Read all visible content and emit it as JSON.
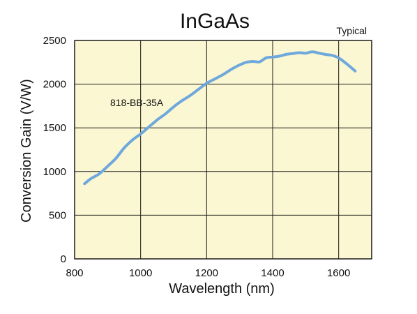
{
  "chart_data": {
    "type": "line",
    "title": "InGaAs",
    "subtitle": "Typical",
    "xlabel": "Wavelength (nm)",
    "ylabel": "Conversion Gain (V/W)",
    "xlim": [
      800,
      1700
    ],
    "ylim": [
      0,
      2500
    ],
    "xticks": [
      800,
      1000,
      1200,
      1400,
      1600
    ],
    "yticks": [
      0,
      500,
      1000,
      1500,
      2000,
      2500
    ],
    "grid": true,
    "colors": {
      "background": "#fbf7d2",
      "line": "#6fa8dc",
      "grid": "#1a1a1a"
    },
    "annotation": "818-BB-35A",
    "series": [
      {
        "name": "818-BB-35A",
        "x": [
          830,
          850,
          875,
          900,
          925,
          950,
          975,
          1000,
          1025,
          1050,
          1075,
          1100,
          1125,
          1150,
          1175,
          1200,
          1225,
          1250,
          1275,
          1300,
          1320,
          1340,
          1360,
          1380,
          1400,
          1420,
          1440,
          1460,
          1480,
          1500,
          1520,
          1540,
          1560,
          1580,
          1600,
          1625,
          1650
        ],
        "y": [
          860,
          920,
          975,
          1060,
          1150,
          1270,
          1360,
          1430,
          1510,
          1590,
          1660,
          1740,
          1810,
          1870,
          1940,
          2010,
          2060,
          2110,
          2170,
          2220,
          2250,
          2260,
          2255,
          2300,
          2310,
          2320,
          2340,
          2350,
          2360,
          2355,
          2370,
          2355,
          2340,
          2330,
          2300,
          2230,
          2150
        ]
      }
    ]
  }
}
